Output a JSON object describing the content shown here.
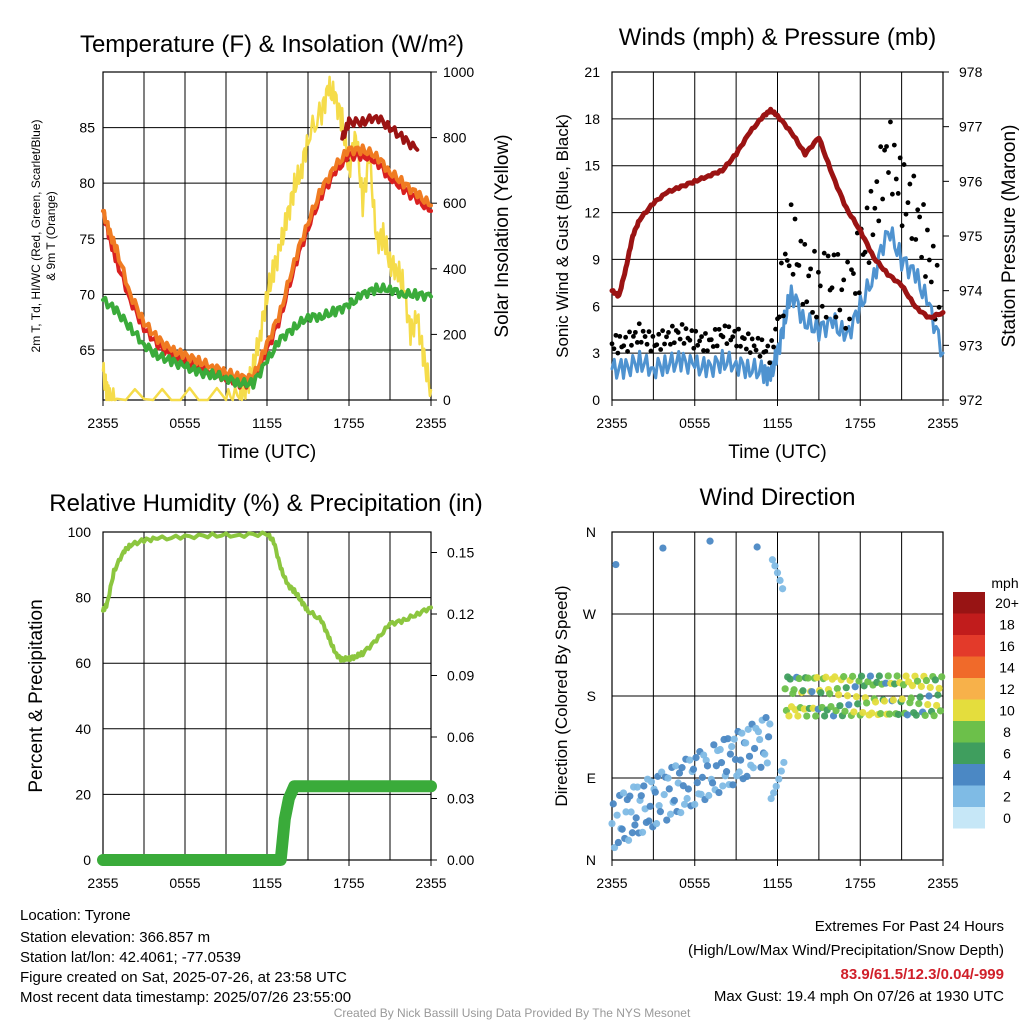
{
  "chart_data": [
    {
      "type": "line",
      "title": "Temperature (F) & Insolation (W/m²)",
      "ylabel_left_line1": "2m T, Td, HI/WC (Red, Green, Scarlet/Blue)",
      "ylabel_left_line2": "& 9m T (Orange)",
      "ylabel_right": "Solar Insolation (Yellow)",
      "xlabel": "Time (UTC)",
      "x_ticks": [
        "2355",
        "0555",
        "1155",
        "1755",
        "2355"
      ],
      "y_left_ticks": [
        65,
        70,
        75,
        80,
        85
      ],
      "ylim_left": [
        60.5,
        90
      ],
      "y_right_ticks": [
        0,
        200,
        400,
        600,
        800,
        1000
      ],
      "ylim_right": [
        0,
        1000
      ],
      "series": [
        {
          "color": "#d92020",
          "axis": "left",
          "x": [
            0,
            0.5,
            1,
            2,
            3,
            4,
            5,
            6,
            7,
            8,
            9,
            10,
            11,
            12,
            13,
            14,
            15,
            16,
            17,
            18,
            19,
            20,
            21,
            22,
            23,
            24
          ],
          "values": [
            77.5,
            75,
            73,
            69.5,
            67,
            65.5,
            64.5,
            64,
            63.5,
            63,
            62.5,
            62,
            62,
            65,
            68,
            72.5,
            76,
            79,
            81,
            82.5,
            82.5,
            82,
            80.5,
            79.5,
            78.5,
            77.5
          ]
        },
        {
          "color": "#f07b22",
          "axis": "left",
          "x": [
            0,
            0.5,
            1,
            2,
            3,
            4,
            5,
            6,
            7,
            8,
            9,
            10,
            11,
            12,
            13,
            14,
            15,
            16,
            17,
            18,
            19,
            20,
            21,
            22,
            23,
            24
          ],
          "values": [
            77.5,
            75.5,
            74,
            70,
            67.5,
            66,
            65,
            64.5,
            64,
            63.5,
            63,
            62.5,
            62.5,
            65.5,
            68.5,
            73,
            76.5,
            79.5,
            81.5,
            83,
            83,
            82.5,
            81,
            80,
            79,
            78
          ]
        },
        {
          "color": "#3aab3a",
          "axis": "left",
          "x": [
            0,
            1,
            2,
            3,
            4,
            5,
            6,
            7,
            8,
            9,
            10,
            11,
            12,
            13,
            14,
            15,
            16,
            17,
            18,
            19,
            20,
            21,
            22,
            23,
            24
          ],
          "values": [
            69.5,
            68.5,
            67,
            65.5,
            64.5,
            64,
            63.5,
            63,
            62.8,
            62.5,
            62,
            62,
            64,
            66,
            67,
            68,
            68,
            68.5,
            69,
            70,
            70.5,
            70.5,
            70,
            70,
            69.8
          ]
        },
        {
          "color": "#9b1313",
          "axis": "left",
          "x": [
            17.5,
            18,
            19,
            20,
            21,
            22,
            23
          ],
          "values": [
            84,
            85.5,
            85.5,
            86,
            85,
            84,
            83
          ]
        },
        {
          "color": "#f5dc4a",
          "axis": "right",
          "x": [
            0,
            0.3,
            0.5,
            1,
            5,
            9,
            10,
            10.5,
            11,
            11.5,
            12,
            12.5,
            13,
            13.5,
            14,
            14.5,
            15,
            16,
            16.5,
            17,
            17.5,
            18,
            18.5,
            19,
            19.5,
            20,
            20.5,
            21,
            21.5,
            22,
            22.5,
            23,
            23.5,
            24
          ],
          "values": [
            90,
            20,
            0,
            0,
            0,
            0,
            10,
            40,
            100,
            200,
            320,
            400,
            470,
            560,
            650,
            700,
            800,
            880,
            950,
            920,
            850,
            700,
            820,
            600,
            750,
            480,
            500,
            420,
            400,
            350,
            200,
            250,
            120,
            30
          ]
        }
      ]
    },
    {
      "type": "line",
      "title": "Winds (mph) & Pressure (mb)",
      "ylabel_left": "Sonic Wind & Gust (Blue, Black)",
      "ylabel_right": "Station Pressure (Maroon)",
      "xlabel": "Time (UTC)",
      "x_ticks": [
        "2355",
        "0555",
        "1155",
        "1755",
        "2355"
      ],
      "y_left_ticks": [
        0,
        3,
        6,
        9,
        12,
        15,
        18,
        21
      ],
      "ylim_left": [
        0,
        21
      ],
      "y_right_ticks": [
        972,
        973,
        974,
        975,
        976,
        977,
        978
      ],
      "ylim_right": [
        972,
        978
      ],
      "series": [
        {
          "color": "#9b1313",
          "axis": "right",
          "x": [
            0,
            0.5,
            1,
            1.5,
            2,
            3,
            4,
            5,
            6,
            7,
            8,
            9,
            10,
            11,
            11.5,
            12,
            13,
            14,
            15,
            16,
            17,
            18,
            19,
            20,
            21,
            22,
            23,
            24
          ],
          "values": [
            974.0,
            973.9,
            974.4,
            975.0,
            975.3,
            975.6,
            975.8,
            975.9,
            976.0,
            976.1,
            976.2,
            976.5,
            976.9,
            977.2,
            977.3,
            977.2,
            976.9,
            976.5,
            976.8,
            976.1,
            975.5,
            975.1,
            974.6,
            974.3,
            974.1,
            973.7,
            973.5,
            973.6
          ]
        },
        {
          "color": "#4f93d0",
          "axis": "left",
          "x": [
            0,
            1,
            2,
            3,
            4,
            5,
            6,
            7,
            8,
            9,
            10,
            11,
            11.5,
            12,
            12.5,
            13,
            14,
            15,
            16,
            17,
            18,
            19,
            20,
            21,
            22,
            23,
            24
          ],
          "values": [
            2,
            2,
            2.5,
            2,
            2.3,
            2.5,
            2.2,
            2,
            2.5,
            2.3,
            2,
            1.8,
            1.5,
            3,
            5,
            7,
            5,
            4.5,
            5,
            4,
            6,
            8,
            11,
            9,
            8,
            6,
            3
          ]
        }
      ]
    },
    {
      "type": "line",
      "title": "Relative Humidity (%) & Precipitation (in)",
      "ylabel_left": "Percent & Precipitation",
      "x_ticks": [
        "2355",
        "0555",
        "1155",
        "1755",
        "2355"
      ],
      "y_left_ticks": [
        0,
        20,
        40,
        60,
        80,
        100
      ],
      "ylim_left": [
        0,
        100
      ],
      "y_right_ticks": [
        "0.00",
        "0.03",
        "0.06",
        "0.09",
        "0.12",
        "0.15"
      ],
      "ylim_right": [
        0,
        0.16
      ],
      "series": [
        {
          "color": "#8cc63f",
          "axis": "left",
          "x": [
            0,
            0.3,
            0.8,
            1.5,
            2,
            3,
            4,
            6,
            8,
            10,
            12,
            12.5,
            13,
            13.5,
            14,
            14.5,
            15,
            16,
            16.5,
            17,
            17.5,
            18,
            18.5,
            19,
            20,
            21,
            22,
            23,
            24
          ],
          "values": [
            76,
            78,
            88,
            94,
            96,
            97.5,
            98,
            98.5,
            99,
            99,
            99.5,
            97,
            89,
            84,
            82,
            79,
            76,
            73,
            68,
            63,
            61,
            61.5,
            62,
            63,
            67,
            72,
            73,
            75,
            77
          ]
        },
        {
          "color": "#3aab3a",
          "axis": "right",
          "x": [
            0,
            4,
            8,
            12,
            13,
            13.3,
            13.6,
            14,
            24
          ],
          "values": [
            0,
            0,
            0,
            0,
            0,
            0.02,
            0.03,
            0.036,
            0.036
          ]
        }
      ]
    },
    {
      "type": "scatter",
      "title": "Wind Direction",
      "ylabel": "Direction (Colored By Speed)",
      "x_ticks": [
        "2355",
        "0555",
        "1155",
        "1755",
        "2355"
      ],
      "y_ticks": [
        "N",
        "E",
        "S",
        "W",
        "N"
      ],
      "ylim": [
        0,
        360
      ],
      "legend_title": "mph",
      "legend_levels": [
        "0",
        "2",
        "4",
        "6",
        "8",
        "10",
        "12",
        "14",
        "16",
        "18",
        "20+"
      ],
      "legend_colors": [
        "#c6e7f7",
        "#7fbbe5",
        "#4b88c4",
        "#3f9e5e",
        "#6cc04a",
        "#e4dd3d",
        "#f7b14a",
        "#f06a2a",
        "#e33a2a",
        "#c11c1c",
        "#981414"
      ]
    }
  ],
  "meta": {
    "location": "Location: Tyrone",
    "elevation": "Station elevation: 366.857 m",
    "latlon": "Station lat/lon: 42.4061; -77.0539",
    "created": "Figure created on Sat, 2025-07-26, at 23:58 UTC",
    "recent": "Most recent data timestamp: 2025/07/26 23:55:00"
  },
  "extremes": {
    "heading": "Extremes For Past 24 Hours",
    "subheading": "(High/Low/Max Wind/Precipitation/Snow Depth)",
    "values": "83.9/61.5/12.3/0.04/-999",
    "values_color": "#d0202a",
    "gust": "Max Gust: 19.4 mph On 07/26 at 1930 UTC"
  },
  "credit": "Created By Nick Bassill Using Data Provided By The NYS Mesonet"
}
